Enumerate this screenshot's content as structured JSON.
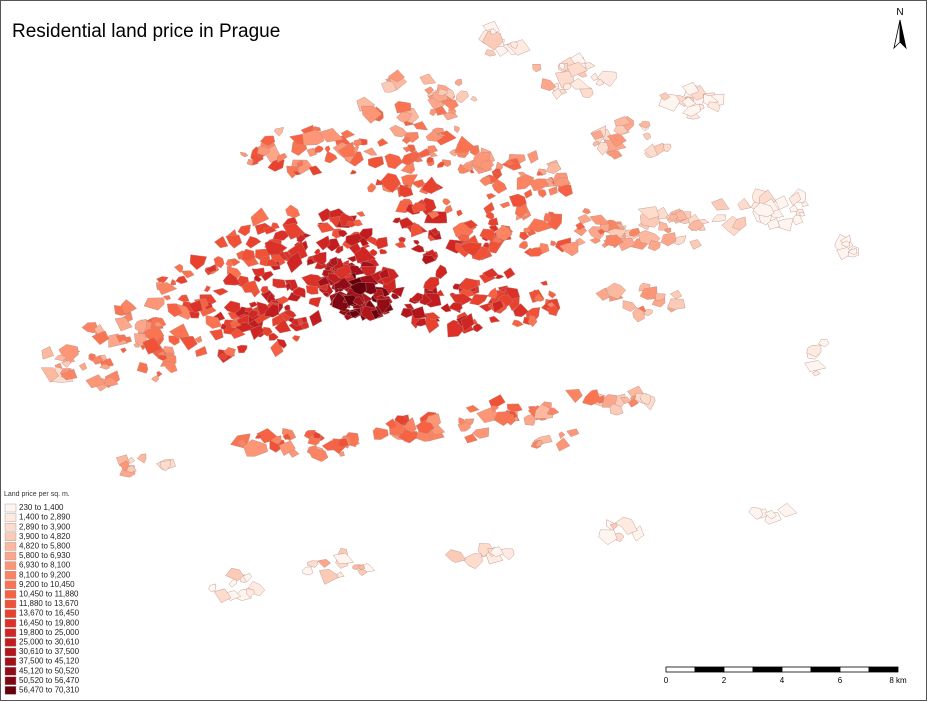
{
  "header": {
    "title": "Residential land price in Prague",
    "north": "N"
  },
  "legend": {
    "title": "Land price per sq. m.",
    "items": [
      {
        "label": "230 to 1,400",
        "color": "#fff5f0"
      },
      {
        "label": "1,400 to 2,890",
        "color": "#feeae1"
      },
      {
        "label": "2,890 to 3,900",
        "color": "#fddcce"
      },
      {
        "label": "3,900 to 4,820",
        "color": "#fccbb7"
      },
      {
        "label": "4,820 to 5,800",
        "color": "#fcb9a0"
      },
      {
        "label": "5,800 to 6,930",
        "color": "#fca78b"
      },
      {
        "label": "6,930 to 8,100",
        "color": "#fc9676"
      },
      {
        "label": "8,100 to 9,200",
        "color": "#fb8563"
      },
      {
        "label": "9,200 to 10,450",
        "color": "#fa7452"
      },
      {
        "label": "10,450 to 11,880",
        "color": "#f66243"
      },
      {
        "label": "11,880 to 13,670",
        "color": "#f05137"
      },
      {
        "label": "13,670 to 16,450",
        "color": "#e8412e"
      },
      {
        "label": "16,450 to 19,800",
        "color": "#dc3128"
      },
      {
        "label": "19,800 to 25,000",
        "color": "#cf2624"
      },
      {
        "label": "25,000 to 30,610",
        "color": "#c11d20"
      },
      {
        "label": "30,610 to 37,500",
        "color": "#b2161c"
      },
      {
        "label": "37,500 to 45,120",
        "color": "#a2111a"
      },
      {
        "label": "45,120 to 50,520",
        "color": "#910c17"
      },
      {
        "label": "50,520 to 56,470",
        "color": "#7e0713"
      },
      {
        "label": "56,470 to 70,310",
        "color": "#67000d"
      }
    ]
  },
  "scale_bar": {
    "labels": [
      "0",
      "2",
      "4",
      "6",
      "8 km"
    ]
  }
}
